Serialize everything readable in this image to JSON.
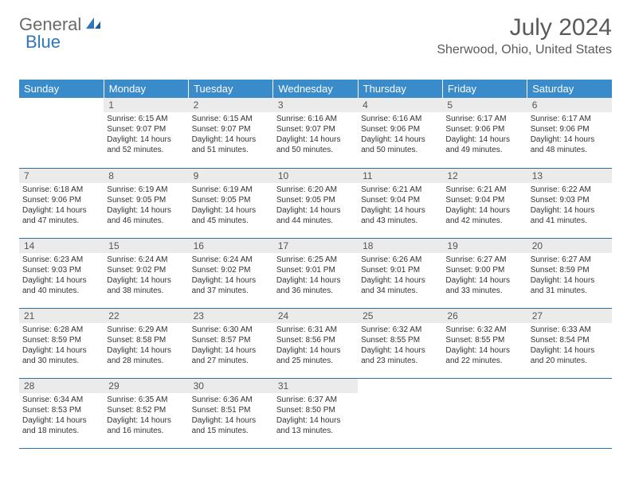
{
  "logo": {
    "part1": "General",
    "part2": "Blue"
  },
  "title": "July 2024",
  "location": "Sherwood, Ohio, United States",
  "colors": {
    "header_bg": "#3a8bc9",
    "header_text": "#ffffff",
    "daynum_bg": "#ebebeb",
    "border": "#2f6fa8",
    "logo_gray": "#6a6a6a",
    "logo_blue": "#2f77bb"
  },
  "weekdays": [
    "Sunday",
    "Monday",
    "Tuesday",
    "Wednesday",
    "Thursday",
    "Friday",
    "Saturday"
  ],
  "weeks": [
    [
      null,
      {
        "n": "1",
        "sr": "6:15 AM",
        "ss": "9:07 PM",
        "dl": "14 hours and 52 minutes."
      },
      {
        "n": "2",
        "sr": "6:15 AM",
        "ss": "9:07 PM",
        "dl": "14 hours and 51 minutes."
      },
      {
        "n": "3",
        "sr": "6:16 AM",
        "ss": "9:07 PM",
        "dl": "14 hours and 50 minutes."
      },
      {
        "n": "4",
        "sr": "6:16 AM",
        "ss": "9:06 PM",
        "dl": "14 hours and 50 minutes."
      },
      {
        "n": "5",
        "sr": "6:17 AM",
        "ss": "9:06 PM",
        "dl": "14 hours and 49 minutes."
      },
      {
        "n": "6",
        "sr": "6:17 AM",
        "ss": "9:06 PM",
        "dl": "14 hours and 48 minutes."
      }
    ],
    [
      {
        "n": "7",
        "sr": "6:18 AM",
        "ss": "9:06 PM",
        "dl": "14 hours and 47 minutes."
      },
      {
        "n": "8",
        "sr": "6:19 AM",
        "ss": "9:05 PM",
        "dl": "14 hours and 46 minutes."
      },
      {
        "n": "9",
        "sr": "6:19 AM",
        "ss": "9:05 PM",
        "dl": "14 hours and 45 minutes."
      },
      {
        "n": "10",
        "sr": "6:20 AM",
        "ss": "9:05 PM",
        "dl": "14 hours and 44 minutes."
      },
      {
        "n": "11",
        "sr": "6:21 AM",
        "ss": "9:04 PM",
        "dl": "14 hours and 43 minutes."
      },
      {
        "n": "12",
        "sr": "6:21 AM",
        "ss": "9:04 PM",
        "dl": "14 hours and 42 minutes."
      },
      {
        "n": "13",
        "sr": "6:22 AM",
        "ss": "9:03 PM",
        "dl": "14 hours and 41 minutes."
      }
    ],
    [
      {
        "n": "14",
        "sr": "6:23 AM",
        "ss": "9:03 PM",
        "dl": "14 hours and 40 minutes."
      },
      {
        "n": "15",
        "sr": "6:24 AM",
        "ss": "9:02 PM",
        "dl": "14 hours and 38 minutes."
      },
      {
        "n": "16",
        "sr": "6:24 AM",
        "ss": "9:02 PM",
        "dl": "14 hours and 37 minutes."
      },
      {
        "n": "17",
        "sr": "6:25 AM",
        "ss": "9:01 PM",
        "dl": "14 hours and 36 minutes."
      },
      {
        "n": "18",
        "sr": "6:26 AM",
        "ss": "9:01 PM",
        "dl": "14 hours and 34 minutes."
      },
      {
        "n": "19",
        "sr": "6:27 AM",
        "ss": "9:00 PM",
        "dl": "14 hours and 33 minutes."
      },
      {
        "n": "20",
        "sr": "6:27 AM",
        "ss": "8:59 PM",
        "dl": "14 hours and 31 minutes."
      }
    ],
    [
      {
        "n": "21",
        "sr": "6:28 AM",
        "ss": "8:59 PM",
        "dl": "14 hours and 30 minutes."
      },
      {
        "n": "22",
        "sr": "6:29 AM",
        "ss": "8:58 PM",
        "dl": "14 hours and 28 minutes."
      },
      {
        "n": "23",
        "sr": "6:30 AM",
        "ss": "8:57 PM",
        "dl": "14 hours and 27 minutes."
      },
      {
        "n": "24",
        "sr": "6:31 AM",
        "ss": "8:56 PM",
        "dl": "14 hours and 25 minutes."
      },
      {
        "n": "25",
        "sr": "6:32 AM",
        "ss": "8:55 PM",
        "dl": "14 hours and 23 minutes."
      },
      {
        "n": "26",
        "sr": "6:32 AM",
        "ss": "8:55 PM",
        "dl": "14 hours and 22 minutes."
      },
      {
        "n": "27",
        "sr": "6:33 AM",
        "ss": "8:54 PM",
        "dl": "14 hours and 20 minutes."
      }
    ],
    [
      {
        "n": "28",
        "sr": "6:34 AM",
        "ss": "8:53 PM",
        "dl": "14 hours and 18 minutes."
      },
      {
        "n": "29",
        "sr": "6:35 AM",
        "ss": "8:52 PM",
        "dl": "14 hours and 16 minutes."
      },
      {
        "n": "30",
        "sr": "6:36 AM",
        "ss": "8:51 PM",
        "dl": "14 hours and 15 minutes."
      },
      {
        "n": "31",
        "sr": "6:37 AM",
        "ss": "8:50 PM",
        "dl": "14 hours and 13 minutes."
      },
      null,
      null,
      null
    ]
  ],
  "labels": {
    "sunrise": "Sunrise:",
    "sunset": "Sunset:",
    "daylight": "Daylight:"
  }
}
